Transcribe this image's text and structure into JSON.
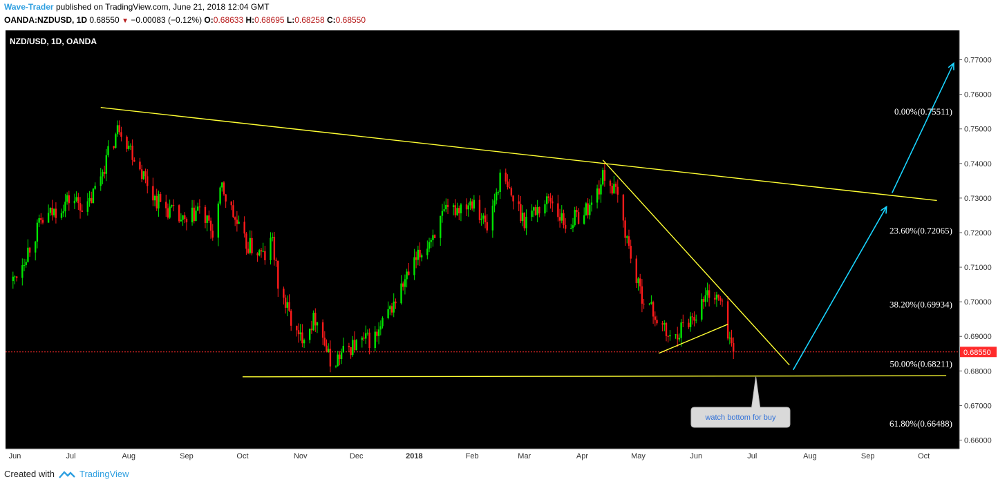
{
  "header": {
    "author": "Wave-Trader",
    "published": "published on TradingView.com, June 21, 2018 12:04 GMT",
    "symbol": "OANDA:NZDUSD, 1D",
    "last": "0.68550",
    "change": "−0.00083 (−0.12%)",
    "o_label": "O:",
    "o": "0.68633",
    "h_label": "H:",
    "h": "0.68695",
    "l_label": "L:",
    "l": "0.68258",
    "c_label": "C:",
    "c": "0.68550"
  },
  "footer": {
    "created_with": "Created with",
    "brand": "TradingView"
  },
  "colors": {
    "background": "#000000",
    "up": "#00e600",
    "down": "#ff1a1a",
    "trendline": "#ffff33",
    "arrow": "#19d4ff",
    "price_tag": "#ff2b2b"
  },
  "chart_data": {
    "type": "candlestick",
    "title": "NZD/USD, 1D, OANDA",
    "y_ticks": [
      "0.77000",
      "0.76000",
      "0.75000",
      "0.74000",
      "0.73000",
      "0.72000",
      "0.71000",
      "0.70000",
      "0.69000",
      "0.68000",
      "0.67000",
      "0.66000"
    ],
    "ylim": [
      0.6575,
      0.7785
    ],
    "x_labels": [
      "Jun",
      "Jul",
      "Aug",
      "Sep",
      "Oct",
      "Nov",
      "Dec",
      "2018",
      "Feb",
      "Mar",
      "Apr",
      "May",
      "Jun",
      "Jul",
      "Aug",
      "Sep",
      "Oct"
    ],
    "current_price": "0.68550",
    "price_path": [
      {
        "x": "2017-05-31",
        "y": 0.706
      },
      {
        "x": "2017-06-15",
        "y": 0.723
      },
      {
        "x": "2017-07-01",
        "y": 0.73
      },
      {
        "x": "2017-07-10",
        "y": 0.727
      },
      {
        "x": "2017-07-27",
        "y": 0.751
      },
      {
        "x": "2017-08-15",
        "y": 0.73
      },
      {
        "x": "2017-09-01",
        "y": 0.722
      },
      {
        "x": "2017-09-07",
        "y": 0.727
      },
      {
        "x": "2017-09-15",
        "y": 0.72
      },
      {
        "x": "2017-09-20",
        "y": 0.733
      },
      {
        "x": "2017-10-02",
        "y": 0.717
      },
      {
        "x": "2017-10-13",
        "y": 0.713
      },
      {
        "x": "2017-10-17",
        "y": 0.718
      },
      {
        "x": "2017-10-20",
        "y": 0.705
      },
      {
        "x": "2017-10-31",
        "y": 0.689
      },
      {
        "x": "2017-11-10",
        "y": 0.696
      },
      {
        "x": "2017-11-17",
        "y": 0.682
      },
      {
        "x": "2017-11-28",
        "y": 0.687
      },
      {
        "x": "2017-12-12",
        "y": 0.69
      },
      {
        "x": "2017-12-29",
        "y": 0.708
      },
      {
        "x": "2018-01-17",
        "y": 0.725
      },
      {
        "x": "2018-02-02",
        "y": 0.73
      },
      {
        "x": "2018-02-09",
        "y": 0.721
      },
      {
        "x": "2018-02-16",
        "y": 0.736
      },
      {
        "x": "2018-03-01",
        "y": 0.724
      },
      {
        "x": "2018-03-15",
        "y": 0.73
      },
      {
        "x": "2018-03-23",
        "y": 0.722
      },
      {
        "x": "2018-04-06",
        "y": 0.728
      },
      {
        "x": "2018-04-13",
        "y": 0.737
      },
      {
        "x": "2018-04-20",
        "y": 0.73
      },
      {
        "x": "2018-05-01",
        "y": 0.704
      },
      {
        "x": "2018-05-11",
        "y": 0.695
      },
      {
        "x": "2018-05-18",
        "y": 0.689
      },
      {
        "x": "2018-06-01",
        "y": 0.697
      },
      {
        "x": "2018-06-08",
        "y": 0.703
      },
      {
        "x": "2018-06-14",
        "y": 0.7
      },
      {
        "x": "2018-06-21",
        "y": 0.6855
      }
    ],
    "fibonacci_levels": [
      {
        "label": "0.00%(0.75511)",
        "value": 0.75511
      },
      {
        "label": "23.60%(0.72065)",
        "value": 0.72065
      },
      {
        "label": "38.20%(0.69934)",
        "value": 0.69934
      },
      {
        "label": "50.00%(0.68211)",
        "value": 0.68211
      },
      {
        "label": "61.80%(0.66488)",
        "value": 0.66488
      }
    ],
    "trendlines": [
      {
        "name": "upper-trendline",
        "from": {
          "x": "2017-07-17",
          "y": 0.7562
        },
        "to": {
          "x": "2018-10-08",
          "y": 0.7293
        }
      },
      {
        "name": "support-line",
        "from": {
          "x": "2017-10-01",
          "y": 0.6783
        },
        "to": {
          "x": "2018-10-13",
          "y": 0.6786
        }
      },
      {
        "name": "falling-wedge-upper",
        "from": {
          "x": "2018-04-12",
          "y": 0.741
        },
        "to": {
          "x": "2018-07-21",
          "y": 0.6817
        }
      },
      {
        "name": "rising-lower-line",
        "from": {
          "x": "2018-05-12",
          "y": 0.6851
        },
        "to": {
          "x": "2018-06-18",
          "y": 0.6935
        }
      }
    ],
    "arrows": [
      {
        "from": {
          "x": "2018-07-23",
          "y": 0.6803
        },
        "to": {
          "x": "2018-09-11",
          "y": 0.7275
        }
      },
      {
        "from": {
          "x": "2018-09-14",
          "y": 0.7315
        },
        "to": {
          "x": "2018-10-17",
          "y": 0.769
        }
      }
    ],
    "annotation": {
      "text": "watch bottom for buy",
      "x": "2018-07-03",
      "y": 0.6785
    }
  }
}
